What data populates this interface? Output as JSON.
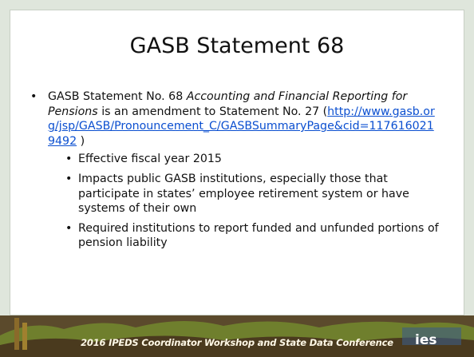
{
  "slide": {
    "title": "GASB Statement 68",
    "main_bullet": {
      "lead": "GASB Statement No. 68 ",
      "italic": "Accounting and Financial Reporting for Pensions",
      "middle": " is an amendment to Statement No. 27 (",
      "link": "http://www.gasb.org/jsp/GASB/Pronouncement_C/GASBSummaryPage&cid=1176160219492",
      "tail": " )"
    },
    "sub_bullets": [
      "Effective fiscal year 2015",
      "Impacts public GASB institutions, especially those that participate in states’ employee retirement system or have systems of their own",
      "Required institutions to report funded and unfunded portions of pension liability"
    ]
  },
  "footer": {
    "text": "2016 IPEDS Coordinator Workshop and State Data Conference",
    "logo": "ies"
  }
}
